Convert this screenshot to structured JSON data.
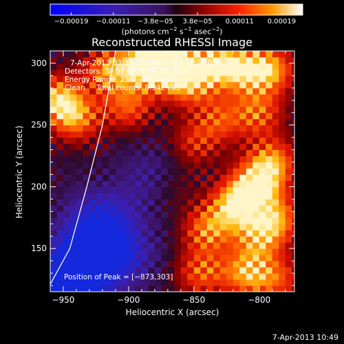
{
  "chart_data": {
    "type": "heatmap",
    "title": "Reconstructed RHESSI Image",
    "xlabel": "Heliocentric X (arcsec)",
    "ylabel": "Heliocentric Y (arcsec)",
    "xlim": [
      -960,
      -773
    ],
    "ylim": [
      115,
      310
    ],
    "x_ticks": [
      -950,
      -900,
      -850,
      -800
    ],
    "x_tick_labels": [
      "−950",
      "−900",
      "−850",
      "−800"
    ],
    "y_ticks": [
      150,
      200,
      250,
      300
    ],
    "y_tick_labels": [
      "150",
      "200",
      "250",
      "300"
    ],
    "colorbar": {
      "range": [
        -0.00019,
        0.00019
      ],
      "tick_labels": [
        "−0.00019",
        "−0.00011",
        "−3.8e−05",
        "3.8e−05",
        "0.00011",
        "0.00019"
      ],
      "units_text": "(photons cm",
      "units_exp1": "−2",
      "units_mid": " s",
      "units_exp2": "−1",
      "units_mid2": " asec",
      "units_exp3": "−2",
      "units_end": ")"
    },
    "annotations": [
      "7-Apr-2013 03:35:26.000 to 03:41:26.000",
      "Detectors: 3F 5F 6F 7F 8F 9F, Att 0",
      "Energy Range: 25.0 - 50.0 keV",
      "Clean     Total counts: 8.94E+03"
    ],
    "peak_label": "Position of Peak = [−873,303]",
    "peak": [
      -873,
      303
    ],
    "limb_arc": [
      [
        -960,
        121
      ],
      [
        -945,
        150
      ],
      [
        -932,
        200
      ],
      [
        -920,
        250
      ],
      [
        -912,
        298
      ],
      [
        -910,
        310
      ]
    ],
    "hotspots": [
      {
        "x": -955,
        "y": 272,
        "amp": 1.1
      },
      {
        "x": -940,
        "y": 255,
        "amp": 0.9
      },
      {
        "x": -915,
        "y": 295,
        "amp": 1.0
      },
      {
        "x": -900,
        "y": 265,
        "amp": 0.8
      },
      {
        "x": -885,
        "y": 300,
        "amp": 1.1
      },
      {
        "x": -873,
        "y": 303,
        "amp": 1.3
      },
      {
        "x": -855,
        "y": 285,
        "amp": 1.0
      },
      {
        "x": -835,
        "y": 300,
        "amp": 1.1
      },
      {
        "x": -810,
        "y": 295,
        "amp": 1.0
      },
      {
        "x": -790,
        "y": 295,
        "amp": 0.9
      },
      {
        "x": -800,
        "y": 260,
        "amp": 0.8
      },
      {
        "x": -830,
        "y": 255,
        "amp": 0.7
      },
      {
        "x": -790,
        "y": 220,
        "amp": 1.0
      },
      {
        "x": -803,
        "y": 200,
        "amp": 1.2
      },
      {
        "x": -820,
        "y": 185,
        "amp": 1.0
      },
      {
        "x": -840,
        "y": 165,
        "amp": 0.9
      },
      {
        "x": -800,
        "y": 160,
        "amp": 0.9
      },
      {
        "x": -785,
        "y": 175,
        "amp": 0.8
      },
      {
        "x": -845,
        "y": 130,
        "amp": 0.8
      },
      {
        "x": -810,
        "y": 130,
        "amp": 1.0
      },
      {
        "x": -785,
        "y": 125,
        "amp": 0.7
      },
      {
        "x": -850,
        "y": 235,
        "amp": 0.6
      },
      {
        "x": -868,
        "y": 200,
        "amp": 0.5
      }
    ],
    "coldspots": [
      {
        "x": -935,
        "y": 140,
        "amp": 1.3
      },
      {
        "x": -922,
        "y": 172,
        "amp": 1.0
      },
      {
        "x": -905,
        "y": 145,
        "amp": 0.8
      },
      {
        "x": -880,
        "y": 205,
        "amp": 0.6
      },
      {
        "x": -945,
        "y": 120,
        "amp": 1.2
      }
    ]
  },
  "footer": "7-Apr-2013 10:49"
}
